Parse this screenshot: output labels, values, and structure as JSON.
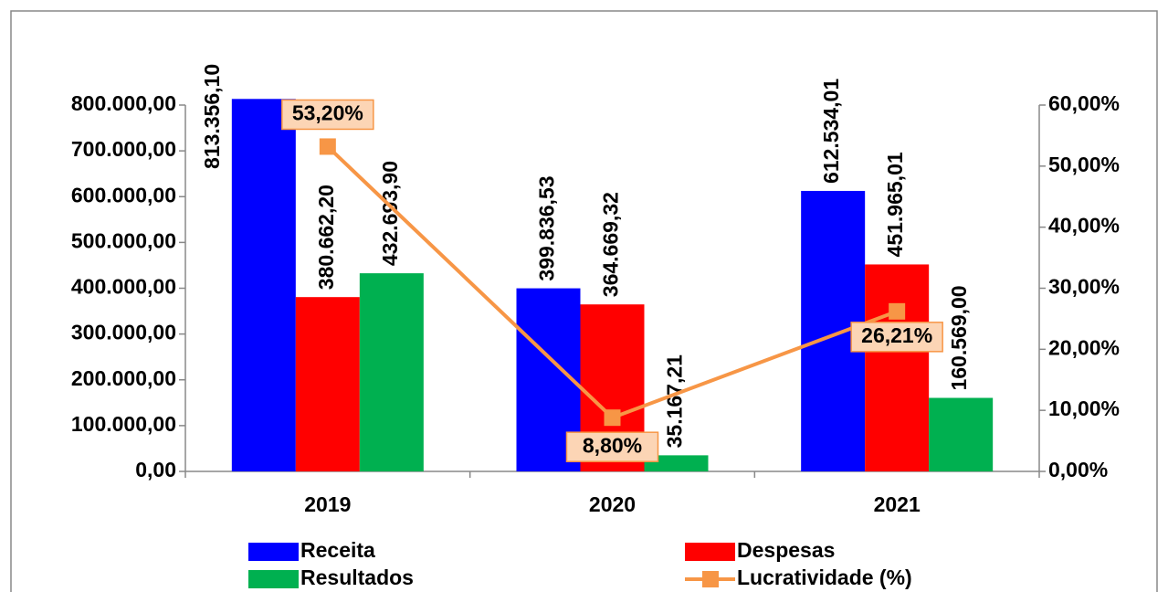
{
  "chart_data": {
    "type": "bar",
    "categories": [
      "2019",
      "2020",
      "2021"
    ],
    "series": [
      {
        "name": "Receita",
        "color": "#0000ff",
        "values": [
          813356.1,
          399836.53,
          612534.01
        ],
        "value_labels": [
          "813.356,10",
          "399.836,53",
          "612.534,01"
        ]
      },
      {
        "name": "Despesas",
        "color": "#ff0000",
        "values": [
          380662.2,
          364669.32,
          451965.01
        ],
        "value_labels": [
          "380.662,20",
          "364.669,32",
          "451.965,01"
        ]
      },
      {
        "name": "Resultados",
        "color": "#00b050",
        "values": [
          432693.9,
          35167.21,
          160569.0
        ],
        "value_labels": [
          "432.693,90",
          "35.167,21",
          "160.569,00"
        ]
      },
      {
        "name": "Lucratividade (%)",
        "type": "line",
        "axis": "y2",
        "color": "#f79646",
        "values": [
          53.2,
          8.8,
          26.21
        ],
        "value_labels": [
          "53,20%",
          "8,80%",
          "26,21%"
        ]
      }
    ],
    "ylim": [
      0,
      800000
    ],
    "yticks": [
      {
        "value": 0,
        "label": "0,00"
      },
      {
        "value": 100000,
        "label": "100.000,00"
      },
      {
        "value": 200000,
        "label": "200.000,00"
      },
      {
        "value": 300000,
        "label": "300.000,00"
      },
      {
        "value": 400000,
        "label": "400.000,00"
      },
      {
        "value": 500000,
        "label": "500.000,00"
      },
      {
        "value": 600000,
        "label": "600.000,00"
      },
      {
        "value": 700000,
        "label": "700.000,00"
      },
      {
        "value": 800000,
        "label": "800.000,00"
      }
    ],
    "y2lim": [
      0,
      60
    ],
    "y2ticks": [
      {
        "value": 0,
        "label": "0,00%"
      },
      {
        "value": 10,
        "label": "10,00%"
      },
      {
        "value": 20,
        "label": "20,00%"
      },
      {
        "value": 30,
        "label": "30,00%"
      },
      {
        "value": 40,
        "label": "40,00%"
      },
      {
        "value": 50,
        "label": "50,00%"
      },
      {
        "value": 60,
        "label": "60,00%"
      }
    ],
    "legend": "bottom"
  }
}
